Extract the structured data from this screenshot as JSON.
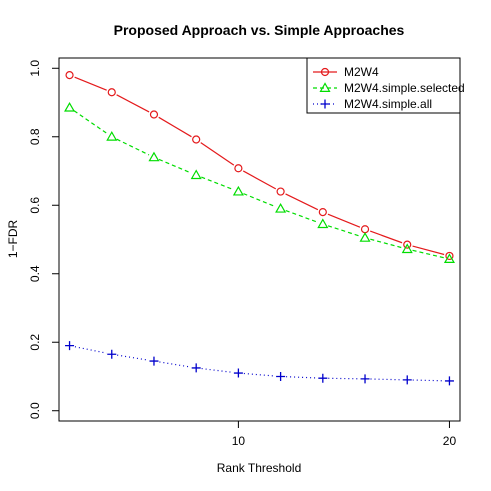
{
  "chart_data": {
    "type": "line",
    "title": "Proposed Approach vs. Simple Approaches",
    "xlabel": "Rank Threshold",
    "ylabel": "1−FDR",
    "xlim": [
      1.5,
      20.5
    ],
    "ylim": [
      -0.03,
      1.03
    ],
    "x_ticks": [
      10,
      20
    ],
    "y_ticks": [
      0.0,
      0.2,
      0.4,
      0.6,
      0.8,
      1.0
    ],
    "x_tick_labels": [
      "10",
      "20"
    ],
    "y_tick_labels": [
      "0.0",
      "0.2",
      "0.4",
      "0.6",
      "0.8",
      "1.0"
    ],
    "grid": false,
    "legend_position": "top-right",
    "x": [
      2,
      4,
      6,
      8,
      10,
      12,
      14,
      16,
      18,
      20
    ],
    "series": [
      {
        "name": "M2W4",
        "color": "#e41a1c",
        "marker": "circle",
        "dash": "solid",
        "values": [
          0.98,
          0.93,
          0.865,
          0.792,
          0.708,
          0.64,
          0.58,
          0.53,
          0.485,
          0.452
        ]
      },
      {
        "name": "M2W4.simple.selected",
        "color": "#00dd00",
        "marker": "triangle",
        "dash": "dashed",
        "values": [
          0.885,
          0.8,
          0.74,
          0.688,
          0.64,
          0.59,
          0.545,
          0.505,
          0.472,
          0.443
        ]
      },
      {
        "name": "M2W4.simple.all",
        "color": "#0000cc",
        "marker": "plus",
        "dash": "dotted",
        "values": [
          0.19,
          0.165,
          0.145,
          0.125,
          0.11,
          0.1,
          0.095,
          0.093,
          0.09,
          0.087
        ]
      }
    ]
  }
}
